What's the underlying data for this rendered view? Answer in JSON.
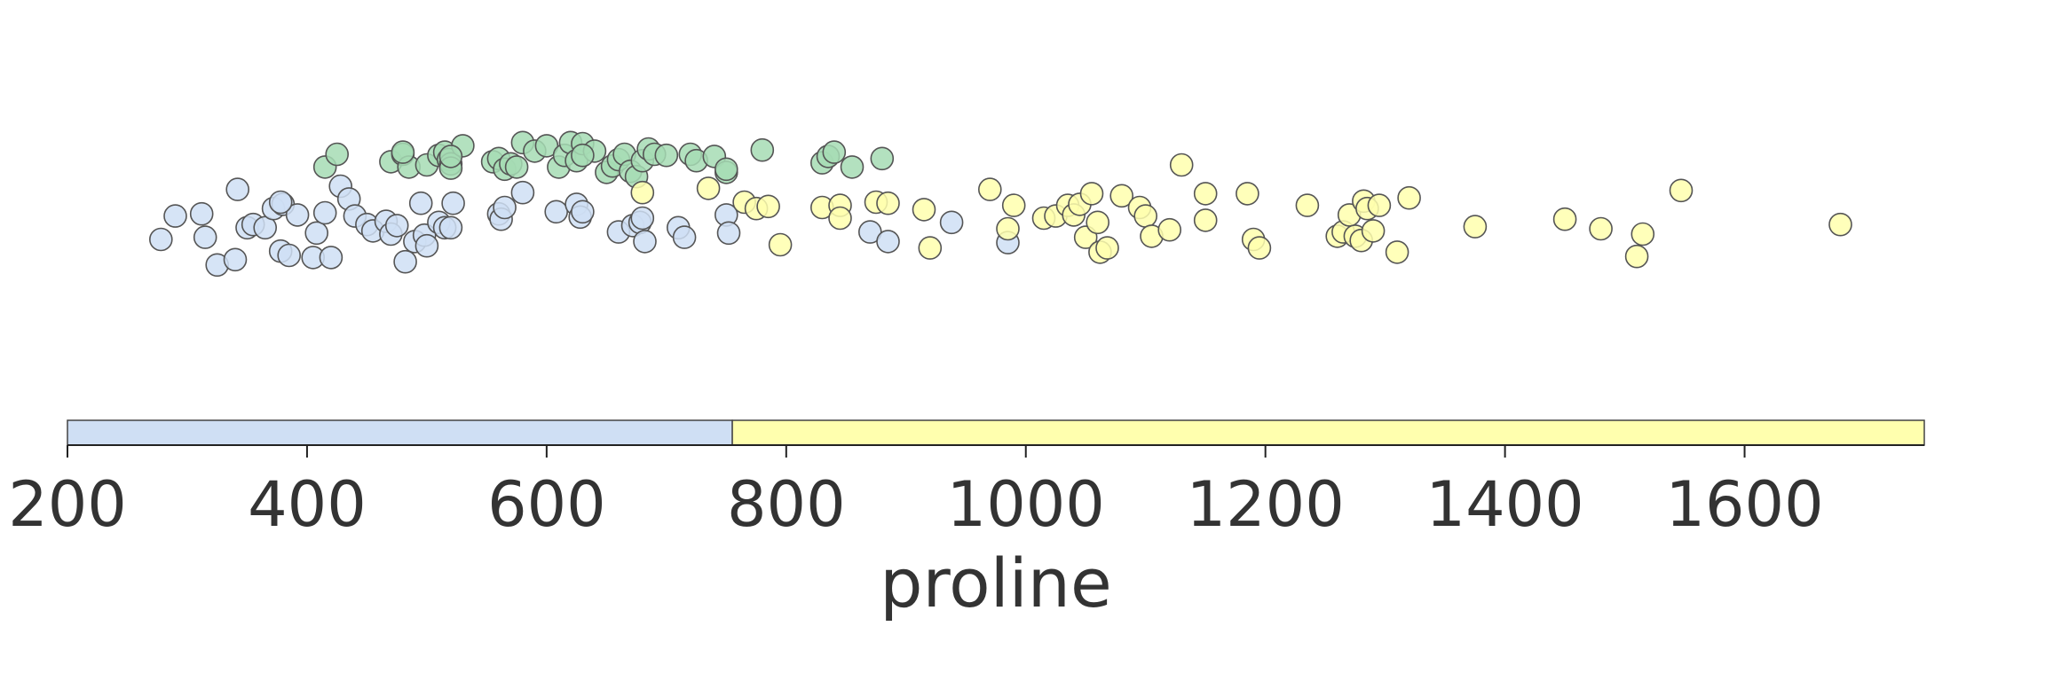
{
  "chart_data": {
    "type": "scatter",
    "title": "",
    "xlabel": "proline",
    "ylabel": "",
    "xlim": [
      200,
      1750
    ],
    "x_ticks": [
      "200",
      "400",
      "600",
      "800",
      "1000",
      "1200",
      "1400",
      "1600"
    ],
    "grid": false,
    "legend": "none",
    "threshold": 755,
    "region_colors": [
      "#cfdff4",
      "#ffffae"
    ],
    "series": [
      {
        "color": "#a6dcb4",
        "x": [
          415,
          425,
          470,
          480,
          485,
          500,
          510,
          515,
          518,
          520,
          520,
          530,
          555,
          560,
          565,
          570,
          575,
          580,
          590,
          600,
          610,
          615,
          620,
          625,
          630,
          640,
          650,
          655,
          660,
          665,
          670,
          675,
          680,
          685,
          690,
          700,
          720,
          725,
          740,
          750,
          750,
          780,
          830,
          835,
          840,
          855,
          880,
          630,
          520,
          480
        ],
        "y": [
          0.68,
          0.8,
          0.73,
          0.8,
          0.68,
          0.7,
          0.79,
          0.82,
          0.75,
          0.71,
          0.67,
          0.88,
          0.73,
          0.76,
          0.66,
          0.71,
          0.68,
          0.91,
          0.83,
          0.88,
          0.68,
          0.79,
          0.91,
          0.74,
          0.9,
          0.83,
          0.63,
          0.69,
          0.75,
          0.8,
          0.64,
          0.59,
          0.74,
          0.85,
          0.8,
          0.79,
          0.8,
          0.74,
          0.78,
          0.63,
          0.66,
          0.84,
          0.72,
          0.78,
          0.82,
          0.68,
          0.76,
          0.79,
          0.78,
          0.82
        ]
      },
      {
        "color": "#cfdff4",
        "x": [
          278,
          290,
          312,
          315,
          325,
          340,
          342,
          350,
          355,
          365,
          372,
          378,
          380,
          385,
          392,
          405,
          408,
          415,
          420,
          428,
          435,
          440,
          450,
          455,
          466,
          470,
          475,
          482,
          490,
          495,
          498,
          500,
          510,
          515,
          520,
          522,
          560,
          562,
          565,
          580,
          608,
          625,
          628,
          630,
          660,
          672,
          678,
          680,
          682,
          710,
          715,
          750,
          752,
          870,
          885,
          938,
          985,
          378
        ],
        "y": [
          0.0,
          0.22,
          0.24,
          0.02,
          -0.24,
          -0.19,
          0.47,
          0.11,
          0.14,
          0.11,
          0.29,
          -0.11,
          0.33,
          -0.15,
          0.23,
          -0.17,
          0.06,
          0.25,
          -0.17,
          0.5,
          0.38,
          0.22,
          0.14,
          0.08,
          0.17,
          0.05,
          0.13,
          -0.21,
          -0.02,
          0.34,
          0.04,
          -0.06,
          0.16,
          0.11,
          0.11,
          0.34,
          0.24,
          0.19,
          0.3,
          0.44,
          0.26,
          0.33,
          0.21,
          0.26,
          0.07,
          0.13,
          0.16,
          0.2,
          -0.02,
          0.11,
          0.02,
          0.23,
          0.06,
          0.07,
          -0.02,
          0.16,
          -0.03,
          0.35
        ]
      },
      {
        "color": "#ffffae",
        "x": [
          680,
          735,
          765,
          775,
          785,
          795,
          830,
          845,
          845,
          875,
          885,
          915,
          920,
          970,
          985,
          990,
          1015,
          1025,
          1035,
          1040,
          1045,
          1050,
          1055,
          1060,
          1062,
          1068,
          1080,
          1095,
          1100,
          1105,
          1120,
          1130,
          1150,
          1150,
          1185,
          1190,
          1195,
          1235,
          1260,
          1265,
          1270,
          1275,
          1280,
          1282,
          1285,
          1290,
          1295,
          1310,
          1320,
          1375,
          1450,
          1480,
          1510,
          1515,
          1547,
          1680
        ],
        "y": [
          0.44,
          0.48,
          0.35,
          0.29,
          0.31,
          -0.05,
          0.3,
          0.32,
          0.2,
          0.35,
          0.34,
          0.28,
          -0.08,
          0.47,
          0.1,
          0.32,
          0.2,
          0.22,
          0.32,
          0.23,
          0.33,
          0.02,
          0.43,
          0.16,
          -0.12,
          -0.08,
          0.41,
          0.3,
          0.22,
          0.03,
          0.09,
          0.7,
          0.43,
          0.18,
          0.43,
          0.0,
          -0.08,
          0.32,
          0.03,
          0.07,
          0.23,
          0.03,
          -0.01,
          0.36,
          0.29,
          0.08,
          0.32,
          -0.12,
          0.39,
          0.12,
          0.19,
          0.1,
          -0.16,
          0.05,
          0.46,
          0.14
        ]
      }
    ]
  }
}
